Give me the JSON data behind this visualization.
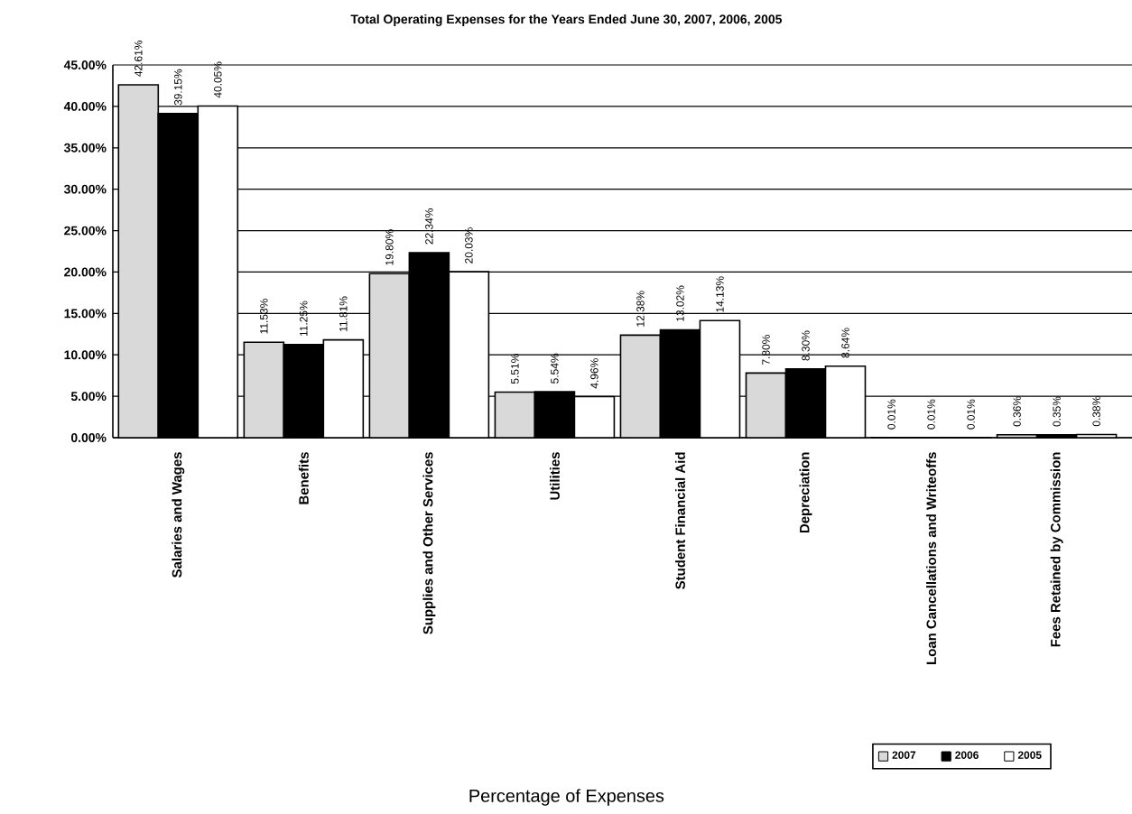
{
  "chart_data": {
    "type": "bar",
    "title": "Total Operating Expenses for the Years Ended June 30, 2007, 2006, 2005",
    "annotations": [
      "Percentage of Expenses"
    ],
    "categories": [
      "Salaries and Wages",
      "Benefits",
      "Supplies and Other Services",
      "Utilities",
      "Student Financial Aid",
      "Depreciation",
      "Loan Cancellations and Writeoffs",
      "Fees Retained by Commission"
    ],
    "series": [
      {
        "name": "2007",
        "color": "#d9d9d9",
        "values": [
          42.61,
          11.53,
          19.8,
          5.51,
          12.38,
          7.8,
          0.01,
          0.36
        ],
        "value_labels": [
          "42.61%",
          "11.53%",
          "19.80%",
          "5.51%",
          "12.38%",
          "7.80%",
          "0.01%",
          "0.36%"
        ]
      },
      {
        "name": "2006",
        "color": "#000000",
        "values": [
          39.15,
          11.25,
          22.34,
          5.54,
          13.02,
          8.3,
          0.01,
          0.35
        ],
        "value_labels": [
          "39.15%",
          "11.25%",
          "22.34%",
          "5.54%",
          "13.02%",
          "8.30%",
          "0.01%",
          "0.35%"
        ]
      },
      {
        "name": "2005",
        "color": "#ffffff",
        "values": [
          40.05,
          11.81,
          20.03,
          4.96,
          14.13,
          8.64,
          0.01,
          0.38
        ],
        "value_labels": [
          "40.05%",
          "11.81%",
          "20.03%",
          "4.96%",
          "14.13%",
          "8.64%",
          "0.01%",
          "0.38%"
        ]
      }
    ],
    "ylim": [
      0,
      45
    ],
    "yticks": [
      {
        "value": 0,
        "label": "0.00%"
      },
      {
        "value": 5,
        "label": "5.00%"
      },
      {
        "value": 10,
        "label": "10.00%"
      },
      {
        "value": 15,
        "label": "15.00%"
      },
      {
        "value": 20,
        "label": "20.00%"
      },
      {
        "value": 25,
        "label": "25.00%"
      },
      {
        "value": 30,
        "label": "30.00%"
      },
      {
        "value": 35,
        "label": "35.00%"
      },
      {
        "value": 40,
        "label": "40.00%"
      },
      {
        "value": 45,
        "label": "45.00%"
      }
    ],
    "grid": "y",
    "legend": "bottom right"
  }
}
